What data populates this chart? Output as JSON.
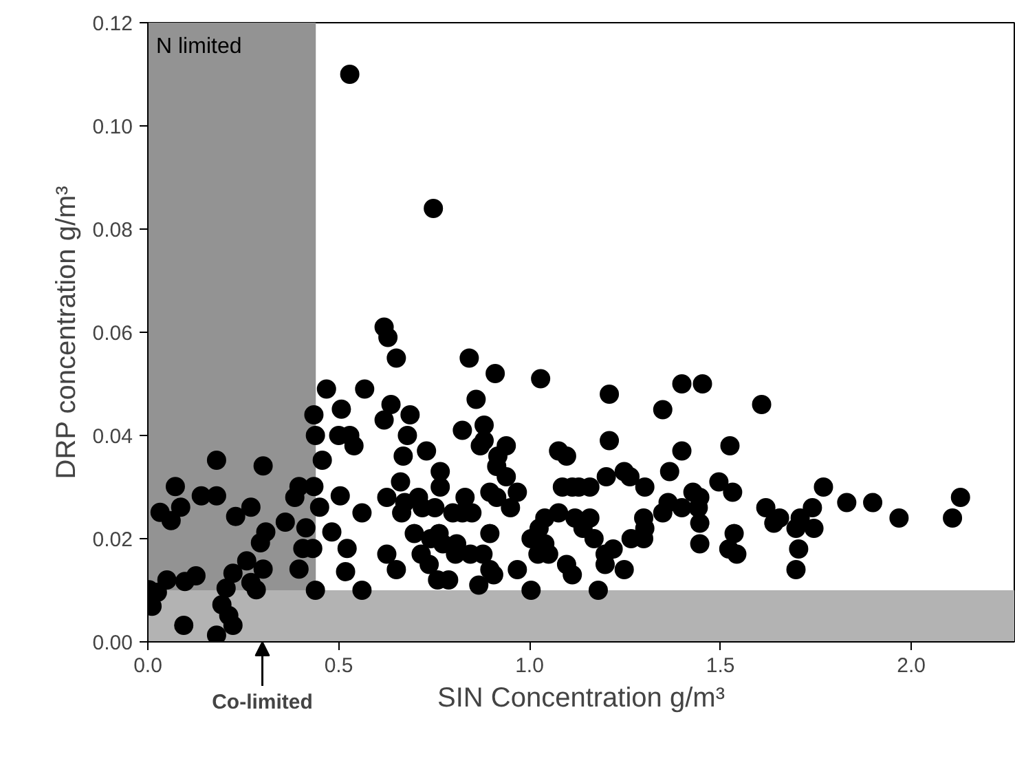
{
  "chart_data": {
    "type": "scatter",
    "xlabel": "SIN Concentration g/m³",
    "ylabel": "DRP concentration g/m³",
    "xlim": [
      0,
      2.27
    ],
    "ylim": [
      0,
      0.12
    ],
    "xticks": [
      {
        "value": 0,
        "label": "0.0"
      },
      {
        "value": 0.5,
        "label": "0.5"
      },
      {
        "value": 1,
        "label": "1.0"
      },
      {
        "value": 1.5,
        "label": "1.5"
      },
      {
        "value": 2,
        "label": "2.0"
      }
    ],
    "yticks": [
      {
        "value": 0,
        "label": "0.00"
      },
      {
        "value": 0.02,
        "label": "0.02"
      },
      {
        "value": 0.04,
        "label": "0.04"
      },
      {
        "value": 0.06,
        "label": "0.06"
      },
      {
        "value": 0.08,
        "label": "0.08"
      },
      {
        "value": 0.1,
        "label": "0.10"
      },
      {
        "value": 0.12,
        "label": "0.12"
      }
    ],
    "grid": false,
    "marker": "circle",
    "bands": [
      {
        "axis": "x",
        "from": 0,
        "to": 0.44,
        "label": "N limited",
        "color": "#939393"
      },
      {
        "axis": "y",
        "from": 0,
        "to": 0.01,
        "color": "#b3b3b3"
      }
    ],
    "annotations": [
      {
        "text": "Co-limited",
        "x": 0.3,
        "y": 0
      }
    ],
    "series": [
      {
        "color": "#000000",
        "x": [
          0.468,
          0.435,
          0.507,
          0.439,
          0.5,
          0.457,
          0.18,
          0.302,
          0.072,
          0.396,
          0.435,
          0.385,
          0.14,
          0.18,
          0.504,
          0.032,
          0.086,
          0.061,
          0.27,
          0.23,
          0.45,
          0.36,
          0.414,
          0.309,
          0.295,
          0.482,
          0.406,
          0.432,
          0.259,
          0.302,
          0.396,
          0.223,
          0.126,
          0.097,
          0.05,
          0.27,
          0.284,
          0.205,
          0.025,
          0.003,
          0.011,
          0.194,
          0.212,
          0.223,
          0.094,
          0.18,
          0.518,
          0.522,
          0.529,
          0.748,
          0.619,
          0.629,
          0.651,
          0.842,
          0.91,
          1.029,
          0.568,
          0.86,
          0.637,
          0.619,
          0.687,
          0.881,
          0.824,
          0.529,
          0.54,
          0.68,
          0.881,
          0.871,
          0.939,
          0.73,
          0.669,
          0.917,
          0.766,
          0.914,
          0.939,
          1.076,
          1.097,
          0.662,
          0.766,
          1.086,
          1.112,
          0.626,
          0.709,
          0.831,
          0.896,
          0.914,
          0.968,
          0.673,
          0.665,
          0.719,
          0.752,
          0.799,
          0.824,
          0.849,
          0.95,
          1.076,
          0.561,
          1.119,
          1.04,
          1.025,
          0.698,
          0.763,
          0.896,
          0.741,
          0.773,
          0.809,
          1.004,
          1.04,
          0.806,
          0.845,
          0.878,
          1.022,
          1.05,
          0.626,
          0.716,
          0.737,
          0.896,
          0.906,
          0.968,
          1.097,
          1.112,
          0.651,
          0.759,
          0.788,
          0.867,
          1.004,
          0.561,
          0.439,
          1.209,
          1.399,
          1.453,
          1.349,
          1.608,
          1.209,
          1.399,
          1.525,
          1.367,
          1.201,
          1.248,
          1.263,
          1.302,
          1.129,
          1.158,
          1.496,
          1.532,
          1.428,
          1.446,
          1.77,
          1.831,
          1.899,
          1.968,
          2.108,
          2.129,
          1.619,
          1.741,
          1.363,
          1.349,
          1.399,
          1.442,
          1.158,
          1.14,
          1.299,
          1.302,
          1.446,
          1.655,
          1.64,
          1.709,
          1.698,
          1.745,
          1.169,
          1.266,
          1.299,
          1.536,
          1.446,
          1.219,
          1.198,
          1.198,
          1.248,
          1.522,
          1.543,
          1.705,
          1.698,
          1.18
        ],
        "values": [
          0.049,
          0.044,
          0.0451,
          0.04,
          0.04,
          0.0352,
          0.0352,
          0.0341,
          0.0301,
          0.0301,
          0.0301,
          0.028,
          0.0283,
          0.0283,
          0.0283,
          0.0251,
          0.0261,
          0.0235,
          0.0261,
          0.0243,
          0.0261,
          0.0232,
          0.0221,
          0.0213,
          0.0192,
          0.0213,
          0.0181,
          0.0181,
          0.0157,
          0.0141,
          0.0141,
          0.0133,
          0.0128,
          0.0117,
          0.012,
          0.0115,
          0.0101,
          0.0104,
          0.0096,
          0.0101,
          0.0069,
          0.0072,
          0.0051,
          0.0032,
          0.0032,
          0.0013,
          0.0136,
          0.0181,
          0.11,
          0.084,
          0.061,
          0.059,
          0.055,
          0.055,
          0.052,
          0.051,
          0.049,
          0.047,
          0.046,
          0.043,
          0.044,
          0.042,
          0.041,
          0.04,
          0.038,
          0.04,
          0.039,
          0.038,
          0.038,
          0.037,
          0.036,
          0.036,
          0.033,
          0.034,
          0.032,
          0.037,
          0.036,
          0.031,
          0.03,
          0.03,
          0.03,
          0.028,
          0.028,
          0.028,
          0.029,
          0.028,
          0.029,
          0.027,
          0.025,
          0.026,
          0.026,
          0.025,
          0.025,
          0.025,
          0.026,
          0.025,
          0.025,
          0.024,
          0.024,
          0.022,
          0.021,
          0.021,
          0.021,
          0.02,
          0.019,
          0.019,
          0.02,
          0.019,
          0.017,
          0.017,
          0.017,
          0.017,
          0.017,
          0.017,
          0.017,
          0.015,
          0.014,
          0.013,
          0.014,
          0.015,
          0.013,
          0.014,
          0.012,
          0.012,
          0.011,
          0.01,
          0.01,
          0.01,
          0.048,
          0.05,
          0.05,
          0.045,
          0.046,
          0.039,
          0.037,
          0.038,
          0.033,
          0.032,
          0.033,
          0.032,
          0.03,
          0.03,
          0.03,
          0.031,
          0.029,
          0.029,
          0.028,
          0.03,
          0.027,
          0.027,
          0.024,
          0.024,
          0.028,
          0.026,
          0.026,
          0.027,
          0.025,
          0.026,
          0.026,
          0.024,
          0.022,
          0.024,
          0.022,
          0.023,
          0.024,
          0.023,
          0.024,
          0.022,
          0.022,
          0.02,
          0.02,
          0.02,
          0.021,
          0.019,
          0.018,
          0.017,
          0.015,
          0.014,
          0.018,
          0.017,
          0.018,
          0.014,
          0.01
        ]
      }
    ]
  }
}
